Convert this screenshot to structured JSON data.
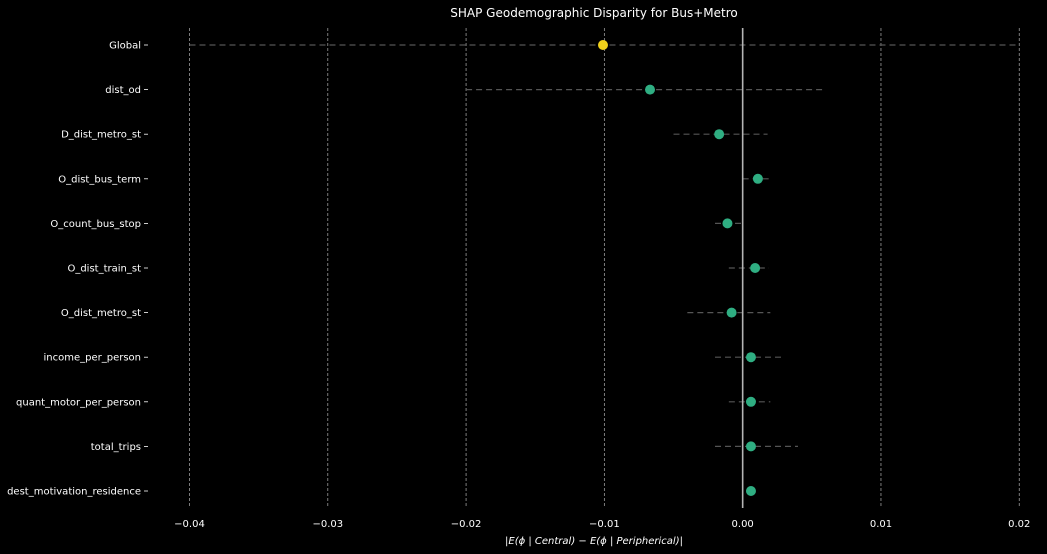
{
  "chart_data": {
    "type": "scatter",
    "title": "SHAP Geodemographic Disparity for Bus+Metro",
    "xlabel": "|E(ϕ | Central) − E(ϕ | Peripherical)|",
    "ylabel": "",
    "xlim": [
      -0.043,
      0.0215
    ],
    "xticks": [
      -0.04,
      -0.03,
      -0.02,
      -0.01,
      0.0,
      0.01,
      0.02
    ],
    "xtick_labels": [
      "−0.04",
      "−0.03",
      "−0.02",
      "−0.01",
      "0.00",
      "0.01",
      "0.02"
    ],
    "grid": "vertical dashed",
    "reference_line_x": 0.0,
    "colors": {
      "global": "#f2d21b",
      "feature": "#2fae82",
      "background": "#000000"
    },
    "points": [
      {
        "label": "Global",
        "value": -0.0101,
        "ci_low": -0.04,
        "ci_high": 0.02,
        "kind": "global"
      },
      {
        "label": "dist_od",
        "value": -0.0067,
        "ci_low": -0.02,
        "ci_high": 0.006,
        "kind": "feature"
      },
      {
        "label": "D_dist_metro_st",
        "value": -0.0017,
        "ci_low": -0.005,
        "ci_high": 0.0018,
        "kind": "feature"
      },
      {
        "label": "O_dist_bus_term",
        "value": 0.0011,
        "ci_low": 0.0,
        "ci_high": 0.0019,
        "kind": "feature"
      },
      {
        "label": "O_count_bus_stop",
        "value": -0.0011,
        "ci_low": -0.002,
        "ci_high": 0.0,
        "kind": "feature"
      },
      {
        "label": "O_dist_train_st",
        "value": 0.0009,
        "ci_low": -0.001,
        "ci_high": 0.0019,
        "kind": "feature"
      },
      {
        "label": "O_dist_metro_st",
        "value": -0.0008,
        "ci_low": -0.004,
        "ci_high": 0.002,
        "kind": "feature"
      },
      {
        "label": "income_per_person",
        "value": 0.0006,
        "ci_low": -0.002,
        "ci_high": 0.003,
        "kind": "feature"
      },
      {
        "label": "quant_motor_per_person",
        "value": 0.0006,
        "ci_low": -0.001,
        "ci_high": 0.002,
        "kind": "feature"
      },
      {
        "label": "total_trips",
        "value": 0.0006,
        "ci_low": -0.002,
        "ci_high": 0.004,
        "kind": "feature"
      },
      {
        "label": "dest_motivation_residence",
        "value": 0.0006,
        "ci_low": 0.0,
        "ci_high": 0.0,
        "kind": "feature"
      }
    ]
  }
}
